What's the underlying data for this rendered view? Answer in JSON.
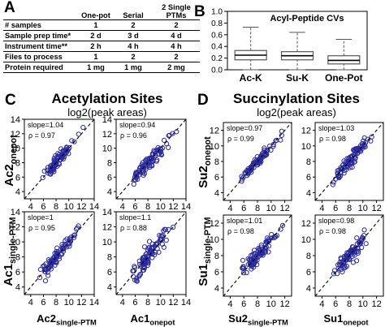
{
  "panel_letters": {
    "a": "A",
    "b": "B",
    "c": "C",
    "d": "D"
  },
  "table": {
    "headers": [
      "",
      "One-pot",
      "Serial",
      "2 Single PTMs"
    ],
    "rows": [
      [
        "# samples",
        "1",
        "2",
        "2"
      ],
      [
        "Sample prep time*",
        "2 d",
        "3 d",
        "4 d"
      ],
      [
        "Instrument time**",
        "2 h",
        "4 h",
        "4 h"
      ],
      [
        "Files to process",
        "1",
        "2",
        "2"
      ],
      [
        "Protein required",
        "1 mg",
        "1 mg",
        "2 mg"
      ]
    ]
  },
  "colors": {
    "point": "#2a2aa0",
    "box": "#555555"
  },
  "panel_c": {
    "title": "Acetylation Sites",
    "subtitle": "log2(peak areas)",
    "ylabel_top": {
      "main": "Ac2",
      "sub": "onepot"
    },
    "ylabel_bottom": {
      "main": "Ac1",
      "sub": "single-PTM"
    },
    "xlabel_left": {
      "main": "Ac2",
      "sub": "single-PTM"
    },
    "xlabel_right": {
      "main": "Ac1",
      "sub": "onepot"
    }
  },
  "panel_d": {
    "title": "Succinylation Sites",
    "subtitle": "log2(peak areas)",
    "ylabel_top": {
      "main": "Su2",
      "sub": "onepot"
    },
    "ylabel_bottom": {
      "main": "Su1",
      "sub": "single-PTM"
    },
    "xlabel_left": {
      "main": "Su2",
      "sub": "single-PTM"
    },
    "xlabel_right": {
      "main": "Su1",
      "sub": "onepot"
    }
  },
  "chart_data": [
    {
      "type": "box",
      "title": "Acyl-Peptide CVs",
      "categories": [
        "Ac-K",
        "Su-K",
        "One-Pot"
      ],
      "ylim": [
        0,
        1
      ],
      "yticks": [
        "0.0",
        "0.2",
        "0.4",
        "0.6",
        "0.8",
        "1.0"
      ],
      "boxes": [
        {
          "name": "Ac-K",
          "min": 0.0,
          "q1": 0.17,
          "median": 0.25,
          "q3": 0.33,
          "max": 0.73
        },
        {
          "name": "Su-K",
          "min": 0.0,
          "q1": 0.17,
          "median": 0.24,
          "q3": 0.31,
          "max": 0.64
        },
        {
          "name": "One-Pot",
          "min": 0.0,
          "q1": 0.1,
          "median": 0.16,
          "q3": 0.24,
          "max": 0.52
        }
      ]
    },
    {
      "type": "scatter",
      "panel": "C",
      "ylabel": "Ac2onepot",
      "xlabel": "Ac2single-PTM",
      "xlim": [
        3,
        14
      ],
      "ylim": [
        3,
        14
      ],
      "ticks": [
        4,
        6,
        8,
        10,
        12,
        14
      ],
      "slope": "slope=1.04",
      "rho": "ρ = 0.97"
    },
    {
      "type": "scatter",
      "panel": "C",
      "ylabel": "Ac2onepot",
      "xlabel": "Ac1onepot",
      "xlim": [
        3,
        14
      ],
      "ylim": [
        3,
        14
      ],
      "ticks": [
        4,
        6,
        8,
        10,
        12,
        14
      ],
      "slope": "slope=0.94",
      "rho": "ρ = 0.96"
    },
    {
      "type": "scatter",
      "panel": "C",
      "ylabel": "Ac1single-PTM",
      "xlabel": "Ac2single-PTM",
      "xlim": [
        3,
        14
      ],
      "ylim": [
        3,
        14
      ],
      "ticks": [
        4,
        6,
        8,
        10,
        12,
        14
      ],
      "slope": "slope=1",
      "rho": "ρ = 0.95"
    },
    {
      "type": "scatter",
      "panel": "C",
      "ylabel": "Ac1single-PTM",
      "xlabel": "Ac1onepot",
      "xlim": [
        3,
        14
      ],
      "ylim": [
        3,
        14
      ],
      "ticks": [
        4,
        6,
        8,
        10,
        12,
        14
      ],
      "slope": "slope=1.1",
      "rho": "ρ = 0.88"
    },
    {
      "type": "scatter",
      "panel": "D",
      "ylabel": "Su2onepot",
      "xlabel": "Su2single-PTM",
      "xlim": [
        3,
        13
      ],
      "ylim": [
        3,
        13
      ],
      "ticks": [
        4,
        6,
        8,
        10,
        12
      ],
      "slope": "slope=0.97",
      "rho": "ρ = 0.99"
    },
    {
      "type": "scatter",
      "panel": "D",
      "ylabel": "Su2onepot",
      "xlabel": "Su1onepot",
      "xlim": [
        3,
        13
      ],
      "ylim": [
        3,
        13
      ],
      "ticks": [
        4,
        6,
        8,
        10,
        12
      ],
      "slope": "slope=1.03",
      "rho": "ρ = 0.98"
    },
    {
      "type": "scatter",
      "panel": "D",
      "ylabel": "Su1single-PTM",
      "xlabel": "Su2single-PTM",
      "xlim": [
        3,
        13
      ],
      "ylim": [
        3,
        13
      ],
      "ticks": [
        4,
        6,
        8,
        10,
        12
      ],
      "slope": "slope=1.01",
      "rho": "ρ = 0.98"
    },
    {
      "type": "scatter",
      "panel": "D",
      "ylabel": "Su1single-PTM",
      "xlabel": "Su1onepot",
      "xlim": [
        3,
        13
      ],
      "ylim": [
        3,
        13
      ],
      "ticks": [
        4,
        6,
        8,
        10,
        12
      ],
      "slope": "slope=0.98",
      "rho": "ρ = 0.98"
    }
  ]
}
